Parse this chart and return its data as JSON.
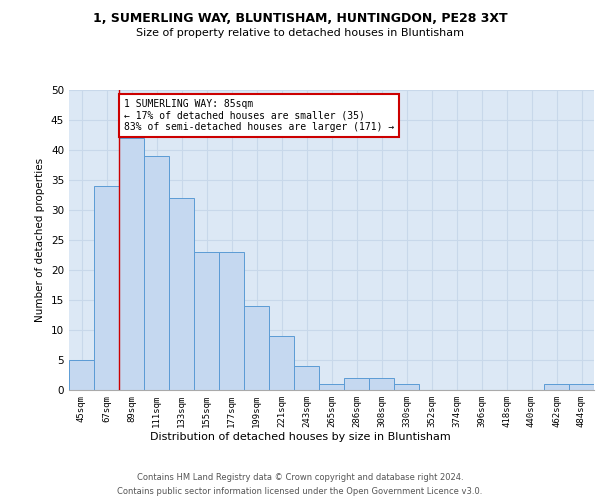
{
  "title1": "1, SUMERLING WAY, BLUNTISHAM, HUNTINGDON, PE28 3XT",
  "title2": "Size of property relative to detached houses in Bluntisham",
  "xlabel": "Distribution of detached houses by size in Bluntisham",
  "ylabel": "Number of detached properties",
  "categories": [
    "45sqm",
    "67sqm",
    "89sqm",
    "111sqm",
    "133sqm",
    "155sqm",
    "177sqm",
    "199sqm",
    "221sqm",
    "243sqm",
    "265sqm",
    "286sqm",
    "308sqm",
    "330sqm",
    "352sqm",
    "374sqm",
    "396sqm",
    "418sqm",
    "440sqm",
    "462sqm",
    "484sqm"
  ],
  "values": [
    5,
    34,
    42,
    39,
    32,
    23,
    23,
    14,
    9,
    4,
    1,
    2,
    2,
    1,
    0,
    0,
    0,
    0,
    0,
    1,
    1
  ],
  "bar_color": "#c5d8f0",
  "bar_edge_color": "#5b9bd5",
  "annotation_text": "1 SUMERLING WAY: 85sqm\n← 17% of detached houses are smaller (35)\n83% of semi-detached houses are larger (171) →",
  "annotation_box_color": "white",
  "annotation_box_edge": "#cc0000",
  "vline_color": "#cc0000",
  "grid_color": "#c8d8ea",
  "background_color": "#dce8f5",
  "footer1": "Contains HM Land Registry data © Crown copyright and database right 2024.",
  "footer2": "Contains public sector information licensed under the Open Government Licence v3.0.",
  "ylim": [
    0,
    50
  ],
  "yticks": [
    0,
    5,
    10,
    15,
    20,
    25,
    30,
    35,
    40,
    45,
    50
  ],
  "vline_x": 1.5
}
